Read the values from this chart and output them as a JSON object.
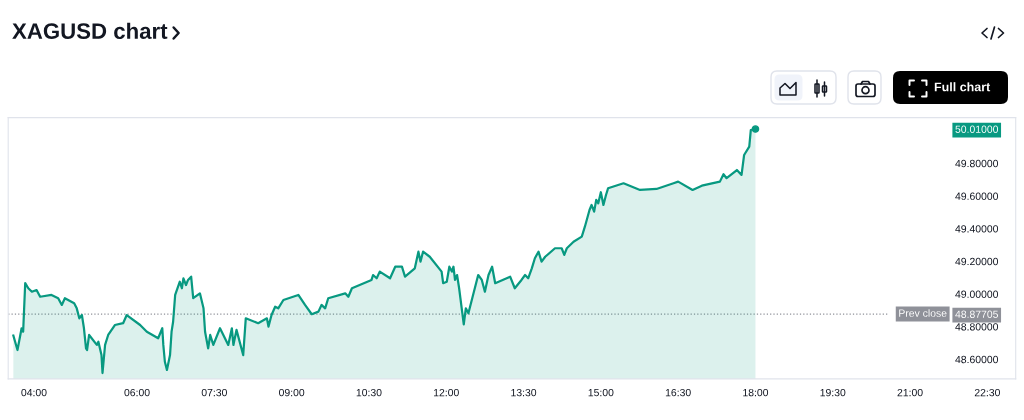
{
  "chart_data": {
    "type": "area",
    "title": "XAGUSD chart",
    "x": [
      3.6,
      3.68,
      3.76,
      3.79,
      3.83,
      3.89,
      3.96,
      4.05,
      4.12,
      4.34,
      4.47,
      4.54,
      4.6,
      4.78,
      4.83,
      4.88,
      4.93,
      4.97,
      5.01,
      5.03,
      5.07,
      5.22,
      5.25,
      5.31,
      5.33,
      5.38,
      5.44,
      5.57,
      5.73,
      5.8,
      6.06,
      6.19,
      6.41,
      6.49,
      6.51,
      6.54,
      6.58,
      6.64,
      6.67,
      6.7,
      6.74,
      6.83,
      6.87,
      6.9,
      6.95,
      6.99,
      7.05,
      7.09,
      7.22,
      7.29,
      7.32,
      7.38,
      7.42,
      7.48,
      7.61,
      7.77,
      7.84,
      7.87,
      7.93,
      8.06,
      8.11,
      8.35,
      8.52,
      8.55,
      8.61,
      8.68,
      8.74,
      8.84,
      9.13,
      9.26,
      9.39,
      9.52,
      9.58,
      9.65,
      9.71,
      10.04,
      10.1,
      10.17,
      10.55,
      10.58,
      10.65,
      10.71,
      10.91,
      11.01,
      11.14,
      11.2,
      11.39,
      11.46,
      11.5,
      11.55,
      11.68,
      11.91,
      11.94,
      12.01,
      12.06,
      12.11,
      12.14,
      12.17,
      12.21,
      12.25,
      12.3,
      12.34,
      12.38,
      12.43,
      12.62,
      12.69,
      12.75,
      12.82,
      12.89,
      12.95,
      13.24,
      13.33,
      13.46,
      13.53,
      13.59,
      13.66,
      13.72,
      13.79,
      13.85,
      13.92,
      14.11,
      14.24,
      14.29,
      14.34,
      14.47,
      14.63,
      14.69,
      14.78,
      14.82,
      14.87,
      14.91,
      14.95,
      15.0,
      15.05,
      15.1,
      15.14,
      15.44,
      15.76,
      16.08,
      16.41,
      16.5,
      16.78,
      16.96,
      17.31,
      17.38,
      17.44,
      17.64,
      17.73,
      17.78,
      17.88,
      17.91,
      18.0
    ],
    "series": [
      {
        "color": "#089981",
        "values": [
          48.745,
          48.657,
          48.79,
          48.769,
          49.066,
          49.035,
          49.014,
          49.024,
          48.983,
          48.994,
          48.974,
          48.933,
          48.974,
          48.943,
          48.912,
          48.851,
          48.871,
          48.79,
          48.667,
          48.657,
          48.749,
          48.688,
          48.708,
          48.626,
          48.516,
          48.688,
          48.749,
          48.81,
          48.821,
          48.871,
          48.81,
          48.769,
          48.729,
          48.79,
          48.688,
          48.585,
          48.535,
          48.626,
          48.769,
          48.83,
          48.994,
          49.075,
          49.035,
          49.096,
          49.055,
          49.086,
          49.106,
          48.974,
          49.004,
          48.912,
          48.769,
          48.667,
          48.749,
          48.688,
          48.79,
          48.688,
          48.79,
          48.688,
          48.78,
          48.626,
          48.851,
          48.821,
          48.851,
          48.8,
          48.871,
          48.922,
          48.912,
          48.963,
          48.994,
          48.933,
          48.876,
          48.892,
          48.933,
          48.912,
          48.974,
          49.004,
          48.983,
          49.035,
          49.086,
          49.116,
          49.096,
          49.137,
          49.096,
          49.167,
          49.167,
          49.106,
          49.157,
          49.259,
          49.198,
          49.259,
          49.228,
          49.137,
          49.066,
          49.075,
          49.167,
          49.137,
          49.167,
          49.086,
          49.116,
          49.035,
          48.912,
          48.814,
          48.912,
          48.882,
          49.116,
          49.086,
          49.014,
          49.116,
          49.167,
          49.066,
          49.106,
          49.035,
          49.086,
          49.116,
          49.096,
          49.157,
          49.219,
          49.259,
          49.198,
          49.228,
          49.28,
          49.28,
          49.239,
          49.28,
          49.32,
          49.351,
          49.412,
          49.514,
          49.545,
          49.504,
          49.576,
          49.555,
          49.623,
          49.545,
          49.606,
          49.647,
          49.678,
          49.637,
          49.643,
          49.678,
          49.688,
          49.637,
          49.663,
          49.688,
          49.733,
          49.709,
          49.759,
          49.729,
          49.851,
          49.902,
          50.004,
          50.01
        ]
      },
      {
        "type": "scatter",
        "color": "#089981",
        "marker": "circle",
        "x": [
          18.0
        ],
        "values": [
          50.01
        ]
      }
    ],
    "xlim": [
      3.5,
      23.05
    ],
    "ylim": [
      48.48,
      50.08
    ],
    "xticks": [
      {
        "value": 4,
        "label": "04:00"
      },
      {
        "value": 6,
        "label": "06:00"
      },
      {
        "value": 7.5,
        "label": "07:30"
      },
      {
        "value": 9,
        "label": "09:00"
      },
      {
        "value": 10.5,
        "label": "10:30"
      },
      {
        "value": 12,
        "label": "12:00"
      },
      {
        "value": 13.5,
        "label": "13:30"
      },
      {
        "value": 15,
        "label": "15:00"
      },
      {
        "value": 16.5,
        "label": "16:30"
      },
      {
        "value": 18,
        "label": "18:00"
      },
      {
        "value": 19.5,
        "label": "19:30"
      },
      {
        "value": 21,
        "label": "21:00"
      },
      {
        "value": 22.5,
        "label": "22:30"
      }
    ],
    "yticks": [
      {
        "value": 48.6,
        "label": "48.60000"
      },
      {
        "value": 48.8,
        "label": "48.80000"
      },
      {
        "value": 48.87705,
        "label": "48.87705"
      },
      {
        "value": 49.0,
        "label": "49.00000"
      },
      {
        "value": 49.2,
        "label": "49.20000"
      },
      {
        "value": 49.4,
        "label": "49.40000"
      },
      {
        "value": 49.6,
        "label": "49.60000"
      },
      {
        "value": 49.8,
        "label": "49.80000"
      },
      {
        "value": 50.01,
        "label": "50.01000"
      }
    ],
    "ref_lines": [
      {
        "axis": "y",
        "value": 48.87705,
        "label": "Prev close",
        "color": "#8f9199",
        "line_style": "dotted"
      }
    ],
    "annotations": [
      "Full chart"
    ]
  }
}
